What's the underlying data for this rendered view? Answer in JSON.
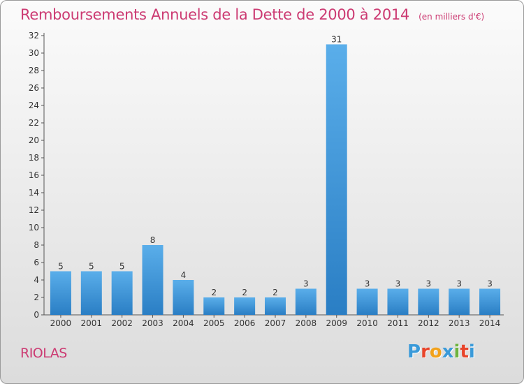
{
  "chart_data": {
    "type": "bar",
    "title": "Remboursements Annuels de la Dette de 2000 à 2014",
    "subtitle": "(en milliers d'€)",
    "categories": [
      "2000",
      "2001",
      "2002",
      "2003",
      "2004",
      "2005",
      "2006",
      "2007",
      "2008",
      "2009",
      "2010",
      "2011",
      "2012",
      "2013",
      "2014"
    ],
    "values": [
      5,
      5,
      5,
      8,
      4,
      2,
      2,
      2,
      3,
      31,
      3,
      3,
      3,
      3,
      3
    ],
    "ylim": [
      0,
      32
    ],
    "yticks": [
      0,
      2,
      4,
      6,
      8,
      10,
      12,
      14,
      16,
      18,
      20,
      22,
      24,
      26,
      28,
      30,
      32
    ],
    "grid": false,
    "legend": "none",
    "bar_color_top": "#5aaeea",
    "bar_color_bottom": "#2a7ec4"
  },
  "place_name": "RIOLAS",
  "logo": {
    "text": "Proxiti",
    "letters": [
      {
        "ch": "P",
        "color": "#3a9ad9"
      },
      {
        "ch": "r",
        "color": "#e8442a"
      },
      {
        "ch": "o",
        "color": "#f2a21b"
      },
      {
        "ch": "x",
        "color": "#3a9ad9"
      },
      {
        "ch": "i",
        "color": "#6db33f"
      },
      {
        "ch": "t",
        "color": "#e8442a"
      },
      {
        "ch": "i",
        "color": "#3a9ad9"
      }
    ]
  }
}
